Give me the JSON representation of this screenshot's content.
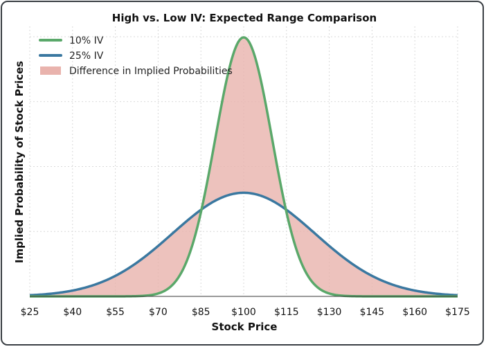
{
  "chart_data": {
    "type": "line",
    "title": "High vs. Low IV: Expected Range Comparison",
    "xlabel": "Stock Price",
    "ylabel": "Implied Probability of Stock Prices",
    "xlim": [
      25,
      175
    ],
    "ylim": [
      0,
      0.0416
    ],
    "x_ticks": [
      "$25",
      "$40",
      "$55",
      "$70",
      "$85",
      "$100",
      "$115",
      "$130",
      "$145",
      "$160",
      "$175"
    ],
    "x_tick_values": [
      25,
      40,
      55,
      70,
      85,
      100,
      115,
      130,
      145,
      160,
      175
    ],
    "y_ticks_shown": false,
    "grid": true,
    "legend_position": "top-left",
    "series": [
      {
        "name": "10% IV",
        "type": "normal-pdf",
        "mean": 100,
        "std": 10,
        "color": "#5aa86a"
      },
      {
        "name": "25% IV",
        "type": "normal-pdf",
        "mean": 100,
        "std": 25,
        "color": "#3a78a0"
      }
    ],
    "fill": {
      "name": "Difference in Implied Probabilities",
      "between": [
        "10% IV",
        "25% IV"
      ],
      "color": "#e9b3ad"
    }
  }
}
